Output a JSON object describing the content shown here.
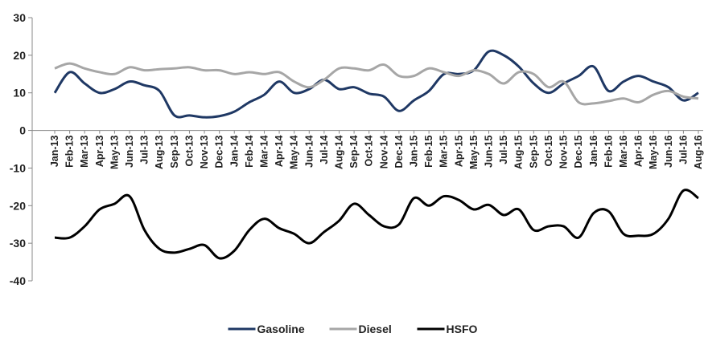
{
  "chart_data": {
    "type": "line",
    "categories": [
      "Jan-13",
      "Feb-13",
      "Mar-13",
      "Apr-13",
      "May-13",
      "Jun-13",
      "Jul-13",
      "Aug-13",
      "Sep-13",
      "Oct-13",
      "Nov-13",
      "Dec-13",
      "Jan-14",
      "Feb-14",
      "Mar-14",
      "Apr-14",
      "May-14",
      "Jun-14",
      "Jul-14",
      "Aug-14",
      "Sep-14",
      "Oct-14",
      "Nov-14",
      "Dec-14",
      "Jan-15",
      "Feb-15",
      "Mar-15",
      "Apr-15",
      "May-15",
      "Jun-15",
      "Jul-15",
      "Aug-15",
      "Sep-15",
      "Oct-15",
      "Nov-15",
      "Dec-15",
      "Jan-16",
      "Feb-16",
      "Mar-16",
      "Apr-16",
      "May-16",
      "Jun-16",
      "Jul-16",
      "Aug-16"
    ],
    "series": [
      {
        "name": "Gasoline",
        "color": "#1f3864",
        "values": [
          10,
          15.5,
          12.5,
          10,
          11,
          13,
          12,
          10.5,
          4,
          4,
          3.5,
          3.8,
          5,
          7.5,
          9.5,
          13,
          10,
          11,
          13.5,
          11,
          11.5,
          9.8,
          9,
          5.2,
          8,
          10.5,
          15,
          15,
          16,
          21,
          20,
          17,
          12.5,
          10,
          12.5,
          14.5,
          17,
          10.5,
          13,
          14.5,
          13,
          11.5,
          8,
          10
        ]
      },
      {
        "name": "Diesel",
        "color": "#a6a6a6",
        "values": [
          16.5,
          17.8,
          16.5,
          15.5,
          15,
          16.8,
          16,
          16.3,
          16.5,
          16.8,
          16,
          16,
          15,
          15.5,
          15,
          15.5,
          13,
          11.5,
          13.5,
          16.5,
          16.5,
          16,
          17.5,
          14.5,
          14.5,
          16.5,
          15.5,
          14.5,
          16,
          15,
          12.5,
          15.5,
          15,
          11.5,
          13,
          7.5,
          7.2,
          7.8,
          8.5,
          7.5,
          9.5,
          10.5,
          9,
          8.5
        ]
      },
      {
        "name": "HSFO",
        "color": "#000000",
        "values": [
          -28.5,
          -28.5,
          -25.5,
          -21,
          -19.5,
          -17.5,
          -26.5,
          -31.5,
          -32.5,
          -31.5,
          -30.5,
          -34,
          -32,
          -26.5,
          -23.5,
          -26,
          -27.5,
          -30,
          -27,
          -24,
          -19.5,
          -22.5,
          -25.5,
          -25,
          -18,
          -20,
          -17.5,
          -18.5,
          -21,
          -19.8,
          -22.5,
          -21,
          -26.5,
          -25.5,
          -25.5,
          -28.5,
          -22,
          -21.5,
          -27.5,
          -28,
          -27.5,
          -23.5,
          -16,
          -18
        ]
      }
    ],
    "ylim": [
      -40,
      30
    ],
    "yticks": [
      30,
      20,
      10,
      0,
      -10,
      -20,
      -30,
      -40
    ],
    "legend": "bottom"
  }
}
